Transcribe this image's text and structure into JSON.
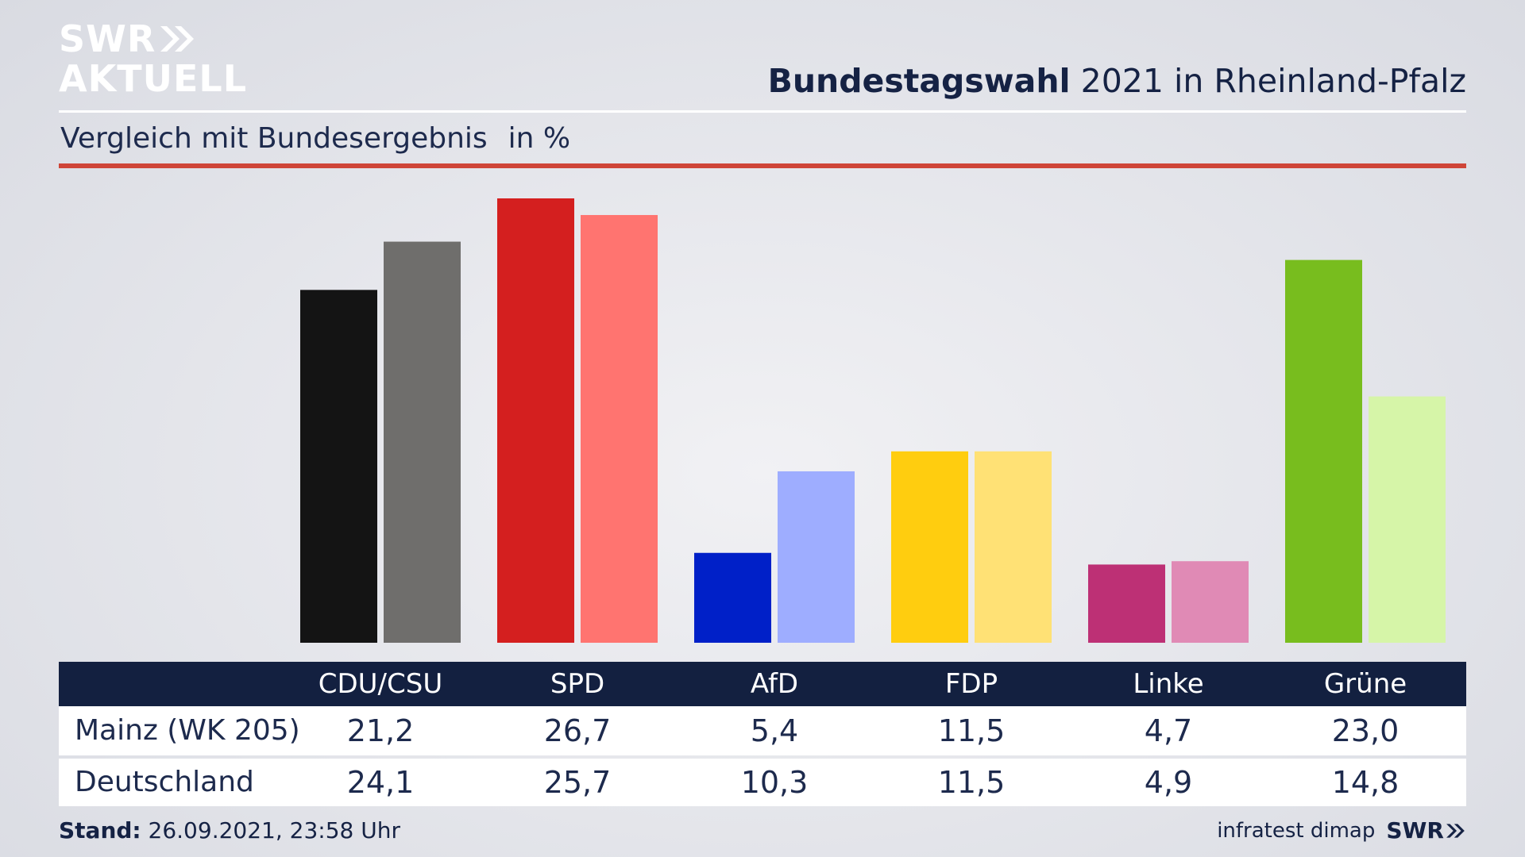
{
  "brand": {
    "line1": "SWR",
    "line2": "AKTUELL"
  },
  "header": {
    "title_bold": "Bundestagswahl",
    "title_rest": "2021 in Rheinland-Pfalz"
  },
  "subtitle": {
    "text": "Vergleich mit Bundesergebnis",
    "unit": "in %"
  },
  "colors": {
    "accent_rule": "#cf4538",
    "table_header": "#132040",
    "CDU/CSU": [
      "#141414",
      "#6f6e6c"
    ],
    "SPD": [
      "#d41f1f",
      "#ff7470"
    ],
    "AfD": [
      "#0020c8",
      "#9eadff"
    ],
    "FDP": [
      "#ffcd0f",
      "#ffe175"
    ],
    "Linke": [
      "#bd3075",
      "#e08ab5"
    ],
    "Grüne": [
      "#78bd1e",
      "#d6f5a8"
    ]
  },
  "chart_data": {
    "type": "bar",
    "categories": [
      "CDU/CSU",
      "SPD",
      "AfD",
      "FDP",
      "Linke",
      "Grüne"
    ],
    "series": [
      {
        "name": "Mainz (WK 205)",
        "values": [
          21.2,
          26.7,
          5.4,
          11.5,
          4.7,
          23.0
        ]
      },
      {
        "name": "Deutschland",
        "values": [
          24.1,
          25.7,
          10.3,
          11.5,
          4.9,
          14.8
        ]
      }
    ],
    "ylim": [
      0,
      26.7
    ],
    "grid": false
  },
  "table": {
    "headers": [
      "CDU/CSU",
      "SPD",
      "AfD",
      "FDP",
      "Linke",
      "Grüne"
    ],
    "rows": [
      {
        "label": "Mainz (WK 205)",
        "values": [
          "21,2",
          "26,7",
          "5,4",
          "11,5",
          "4,7",
          "23,0"
        ]
      },
      {
        "label": "Deutschland",
        "values": [
          "24,1",
          "25,7",
          "10,3",
          "11,5",
          "4,9",
          "14,8"
        ]
      }
    ]
  },
  "footer": {
    "stand_label": "Stand:",
    "stand_value": "26.09.2021, 23:58 Uhr",
    "source": "infratest dimap",
    "brand": "SWR"
  }
}
